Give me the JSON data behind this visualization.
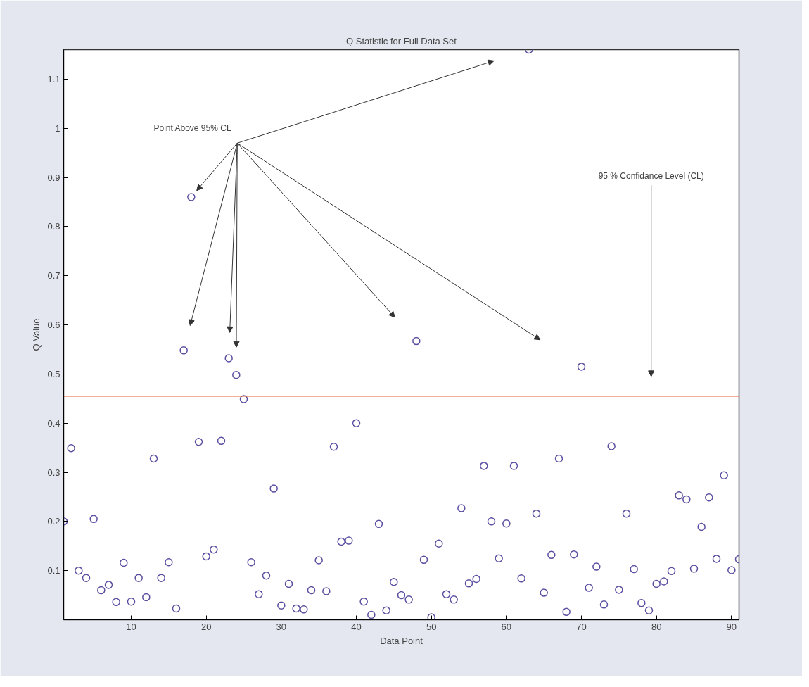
{
  "chart_data": {
    "type": "scatter",
    "title": "Q Statistic for Full Data Set",
    "xlabel": "Data Point",
    "ylabel": "Q Value",
    "x": [
      1,
      2,
      3,
      4,
      5,
      6,
      7,
      8,
      9,
      10,
      11,
      12,
      13,
      14,
      15,
      16,
      17,
      18,
      19,
      20,
      21,
      22,
      23,
      24,
      25,
      26,
      27,
      28,
      29,
      30,
      31,
      32,
      33,
      34,
      35,
      36,
      37,
      38,
      39,
      40,
      41,
      42,
      43,
      44,
      45,
      46,
      47,
      48,
      49,
      50,
      51,
      52,
      53,
      54,
      55,
      56,
      57,
      58,
      59,
      60,
      61,
      62,
      63,
      64,
      65,
      66,
      67,
      68,
      69,
      70,
      71,
      72,
      73,
      74,
      75,
      76,
      77,
      78,
      79,
      80,
      81,
      82,
      83,
      84,
      85,
      86,
      87,
      88,
      89,
      90,
      91
    ],
    "series": [
      {
        "color": "#5a4fa0",
        "values": [
          0.2,
          0.349,
          0.1,
          0.085,
          0.205,
          0.06,
          0.071,
          0.036,
          0.116,
          0.037,
          0.085,
          0.046,
          0.328,
          0.085,
          0.117,
          0.023,
          0.548,
          0.86,
          0.362,
          0.129,
          0.143,
          0.364,
          0.532,
          0.498,
          0.449,
          0.117,
          0.052,
          0.09,
          0.267,
          0.029,
          0.073,
          0.023,
          0.021,
          0.06,
          0.121,
          0.058,
          0.352,
          0.159,
          0.161,
          0.4,
          0.037,
          0.01,
          0.195,
          0.019,
          0.077,
          0.05,
          0.041,
          0.567,
          0.122,
          0.005,
          0.155,
          0.052,
          0.041,
          0.227,
          0.074,
          0.083,
          0.313,
          0.2,
          0.125,
          0.196,
          0.313,
          0.084,
          1.16,
          0.216,
          0.055,
          0.132,
          0.328,
          0.016,
          0.133,
          0.515,
          0.065,
          0.108,
          0.031,
          0.353,
          0.061,
          0.216,
          0.103,
          0.034,
          0.019,
          0.073,
          0.078,
          0.099,
          0.253,
          0.245,
          0.104,
          0.189,
          0.249,
          0.124,
          0.294,
          0.101,
          0.123
        ]
      }
    ],
    "xlim": [
      1,
      91
    ],
    "ylim": [
      0,
      1.16
    ],
    "xticks": [
      10,
      20,
      30,
      40,
      50,
      60,
      70,
      80,
      90
    ],
    "yticks": [
      0.1,
      0.2,
      0.3,
      0.4,
      0.5,
      0.6,
      0.7,
      0.8,
      0.9,
      1,
      1.1
    ],
    "ref_lines": [
      {
        "axis": "y",
        "value": 0.455,
        "color": "#e8602c"
      }
    ],
    "annotations": [
      "Point Above 95% CL",
      "95 % Confidance Level (CL)"
    ],
    "marker": "circle",
    "grid": false
  }
}
